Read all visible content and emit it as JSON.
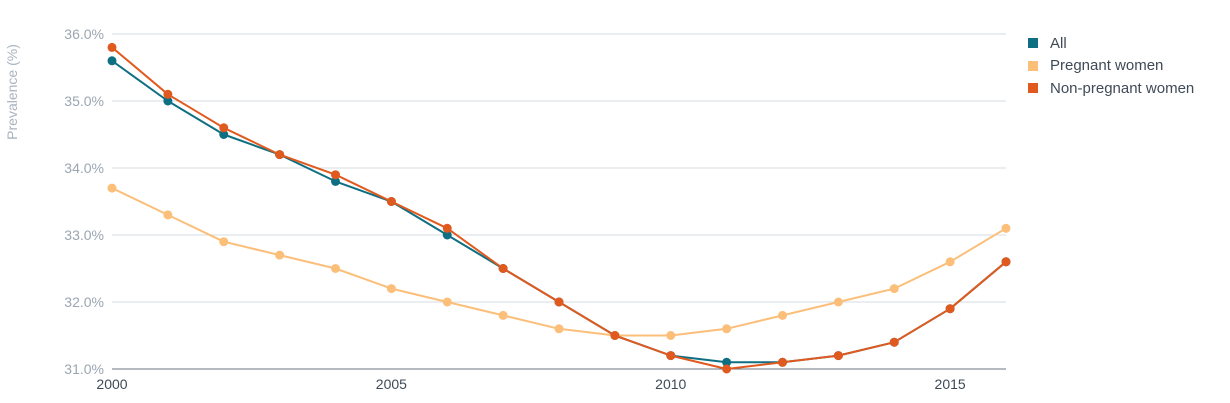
{
  "chart_data": {
    "type": "line",
    "ylabel": "Prevalence (%)",
    "x": [
      2000,
      2001,
      2002,
      2003,
      2004,
      2005,
      2006,
      2007,
      2008,
      2009,
      2010,
      2011,
      2012,
      2013,
      2014,
      2015,
      2016
    ],
    "xticks": [
      "2000",
      "2005",
      "2010",
      "2015"
    ],
    "yticks": [
      "31.0%",
      "32.0%",
      "33.0%",
      "34.0%",
      "35.0%",
      "36.0%"
    ],
    "ylim": [
      31,
      36
    ],
    "xlim": [
      2000,
      2016
    ],
    "grid": true,
    "legend_position": "top-right",
    "series": [
      {
        "name": "All",
        "color": "#0e6f82",
        "values": [
          35.6,
          35.0,
          34.5,
          34.2,
          33.8,
          33.5,
          33.0,
          32.5,
          32.0,
          31.5,
          31.2,
          31.1,
          31.1,
          31.2,
          31.4,
          31.9,
          32.6
        ]
      },
      {
        "name": "Pregnant women",
        "color": "#fbbf7a",
        "values": [
          33.7,
          33.3,
          32.9,
          32.7,
          32.5,
          32.2,
          32.0,
          31.8,
          31.6,
          31.5,
          31.5,
          31.6,
          31.8,
          32.0,
          32.2,
          32.6,
          33.1
        ]
      },
      {
        "name": "Non-pregnant women",
        "color": "#e05a1f",
        "values": [
          35.8,
          35.1,
          34.6,
          34.2,
          33.9,
          33.5,
          33.1,
          32.5,
          32.0,
          31.5,
          31.2,
          31.0,
          31.1,
          31.2,
          31.4,
          31.9,
          32.6
        ]
      }
    ]
  }
}
